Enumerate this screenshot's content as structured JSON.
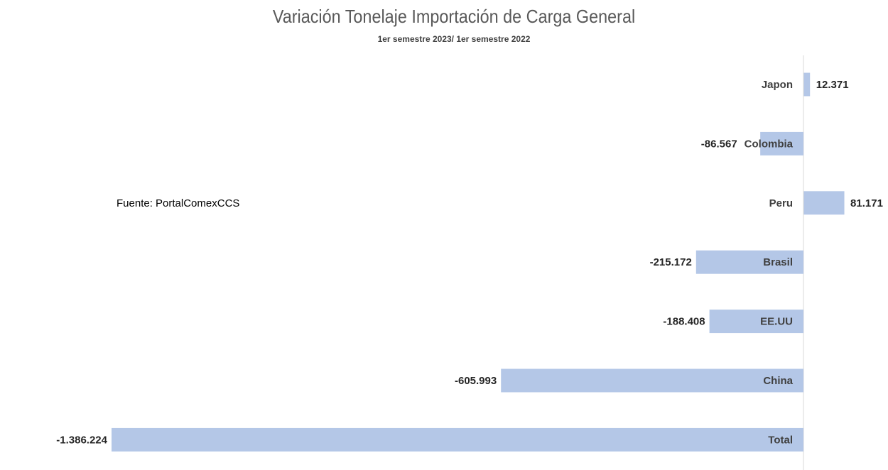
{
  "chart_data": {
    "type": "bar",
    "orientation": "horizontal",
    "title": "Variación Tonelaje Importación de Carga General",
    "subtitle": "1er semestre 2023/ 1er semestre 2022",
    "categories": [
      "Japon",
      "Colombia",
      "Peru",
      "Brasil",
      "EE.UU",
      "China",
      "Total"
    ],
    "values": [
      12371,
      -86567,
      81171,
      -215172,
      -188408,
      -605993,
      -1386224
    ],
    "value_labels": [
      "12.371",
      "-86.567",
      "81.171",
      "-215.172",
      "-188.408",
      "-605.993",
      "-1.386.224"
    ],
    "xlim": [
      -1386224,
      130000
    ],
    "grid": false,
    "legend": "none",
    "bar_color": "#b4c7e7",
    "axis_color": "#d9d9d9"
  },
  "source_note": "Fuente: PortalComexCCS"
}
